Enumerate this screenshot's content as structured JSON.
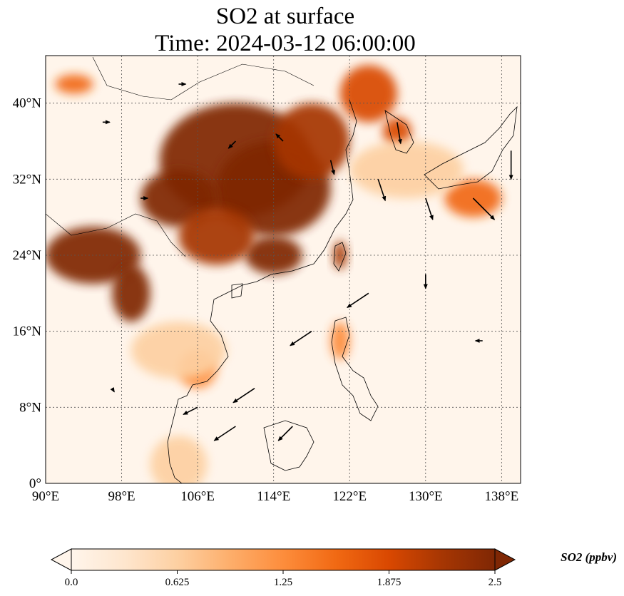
{
  "title_line1": "SO2 at surface",
  "title_line2": "Time: 2024-03-12 06:00:00",
  "map": {
    "lon_range": [
      90,
      140
    ],
    "lat_range": [
      0,
      45
    ],
    "lon_ticks": [
      90,
      98,
      106,
      114,
      122,
      130,
      138
    ],
    "lat_ticks": [
      0,
      8,
      16,
      24,
      32,
      40
    ],
    "lon_tick_labels": [
      "90°E",
      "98°E",
      "106°E",
      "114°E",
      "122°E",
      "130°E",
      "138°E"
    ],
    "lat_tick_labels": [
      "0°",
      "8°N",
      "16°N",
      "24°N",
      "32°N",
      "40°N"
    ],
    "gridlines": true
  },
  "colorbar": {
    "label": "SO2 (ppbv)",
    "min": 0.0,
    "max": 2.5,
    "ticks": [
      0.0,
      0.625,
      1.25,
      1.875,
      2.5
    ],
    "tick_labels": [
      "0.0",
      "0.625",
      "1.25",
      "1.875",
      "2.5"
    ],
    "colormap": [
      "#fff5eb",
      "#fee6ce",
      "#fdd0a2",
      "#fdae6b",
      "#fd8d3c",
      "#f16913",
      "#d94801",
      "#a63603",
      "#7f2704"
    ],
    "extend": "both"
  },
  "so2_regions": [
    {
      "lon": 110,
      "lat": 34,
      "rx": 8,
      "ry": 6,
      "value": 2.5
    },
    {
      "lon": 114,
      "lat": 31,
      "rx": 6,
      "ry": 5,
      "value": 2.5
    },
    {
      "lon": 104,
      "lat": 30,
      "rx": 4,
      "ry": 3,
      "value": 2.4
    },
    {
      "lon": 118,
      "lat": 36,
      "rx": 4,
      "ry": 4,
      "value": 2.3
    },
    {
      "lon": 114,
      "lat": 24,
      "rx": 3,
      "ry": 2,
      "value": 2.4
    },
    {
      "lon": 108,
      "lat": 26,
      "rx": 4,
      "ry": 3,
      "value": 2.2
    },
    {
      "lon": 95,
      "lat": 24,
      "rx": 5,
      "ry": 3,
      "value": 2.5
    },
    {
      "lon": 99,
      "lat": 20,
      "rx": 2,
      "ry": 3,
      "value": 2.4
    },
    {
      "lon": 121,
      "lat": 24,
      "rx": 0.7,
      "ry": 1.5,
      "value": 2.3
    },
    {
      "lon": 124,
      "lat": 41,
      "rx": 3,
      "ry": 3,
      "value": 2.0
    },
    {
      "lon": 127,
      "lat": 37,
      "rx": 1.5,
      "ry": 1.5,
      "value": 1.9
    },
    {
      "lon": 135,
      "lat": 30,
      "rx": 3,
      "ry": 2,
      "value": 1.6
    },
    {
      "lon": 106,
      "lat": 12,
      "rx": 2,
      "ry": 2,
      "value": 1.3
    },
    {
      "lon": 121,
      "lat": 15,
      "rx": 1,
      "ry": 2,
      "value": 1.4
    },
    {
      "lon": 104,
      "lat": 14,
      "rx": 5,
      "ry": 3,
      "value": 0.7
    },
    {
      "lon": 104,
      "lat": 2,
      "rx": 3,
      "ry": 3,
      "value": 0.6
    },
    {
      "lon": 128,
      "lat": 33,
      "rx": 6,
      "ry": 3,
      "value": 0.7
    },
    {
      "lon": 93,
      "lat": 42,
      "rx": 2,
      "ry": 1,
      "value": 1.5
    }
  ],
  "wind_vectors": [
    {
      "lon": 110,
      "lat": 36,
      "u": -1,
      "v": -1
    },
    {
      "lon": 115,
      "lat": 36,
      "u": -1,
      "v": 1
    },
    {
      "lon": 120,
      "lat": 34,
      "u": 0.5,
      "v": -2
    },
    {
      "lon": 125,
      "lat": 32,
      "u": 1,
      "v": -3
    },
    {
      "lon": 130,
      "lat": 30,
      "u": 1,
      "v": -3
    },
    {
      "lon": 135,
      "lat": 30,
      "u": 3,
      "v": -3
    },
    {
      "lon": 127,
      "lat": 38,
      "u": 0.5,
      "v": -3
    },
    {
      "lon": 139,
      "lat": 35,
      "u": 0,
      "v": -4
    },
    {
      "lon": 124,
      "lat": 20,
      "u": -3,
      "v": -2
    },
    {
      "lon": 118,
      "lat": 16,
      "u": -3,
      "v": -2
    },
    {
      "lon": 112,
      "lat": 10,
      "u": -3,
      "v": -2
    },
    {
      "lon": 110,
      "lat": 6,
      "u": -3,
      "v": -2
    },
    {
      "lon": 116,
      "lat": 6,
      "u": -2,
      "v": -2
    },
    {
      "lon": 106,
      "lat": 8,
      "u": -2,
      "v": -1
    },
    {
      "lon": 130,
      "lat": 22,
      "u": 0,
      "v": -2
    },
    {
      "lon": 100,
      "lat": 30,
      "u": 1,
      "v": 0
    },
    {
      "lon": 96,
      "lat": 38,
      "u": 1,
      "v": 0
    },
    {
      "lon": 104,
      "lat": 42,
      "u": 1,
      "v": 0
    },
    {
      "lon": 97,
      "lat": 10,
      "u": 0.3,
      "v": -0.5
    },
    {
      "lon": 136,
      "lat": 15,
      "u": -1,
      "v": 0
    }
  ]
}
